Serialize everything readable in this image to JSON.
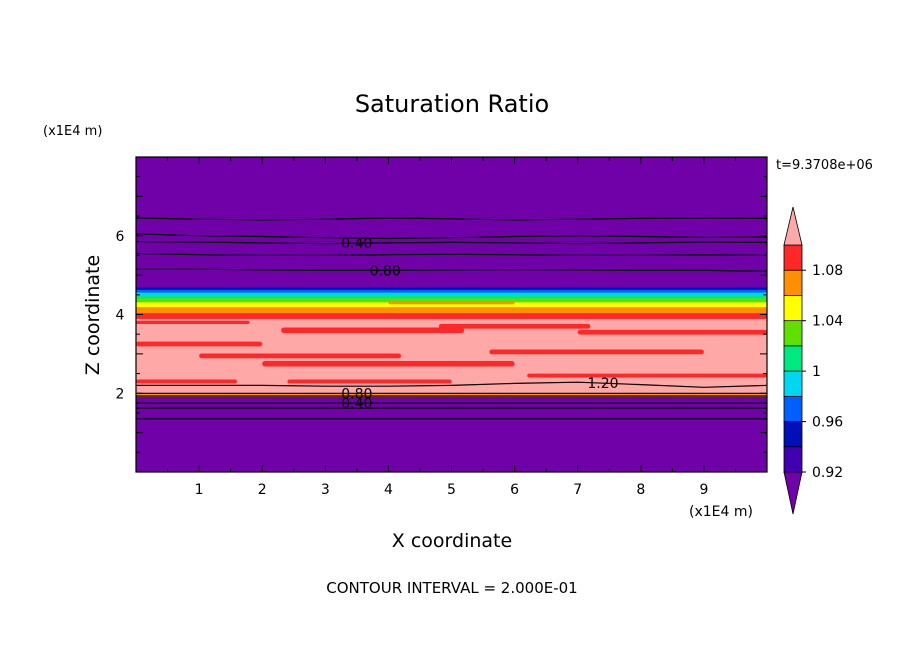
{
  "chart_data": {
    "type": "contour",
    "title": "Saturation Ratio",
    "xlabel": "X coordinate",
    "ylabel": "Z coordinate",
    "x_unit": "(x1E4 m)",
    "y_unit": "(x1E4 m)",
    "time_label": "t=9.3708e+06",
    "footer": "CONTOUR INTERVAL = 2.000E-01",
    "xlim": [
      0,
      10
    ],
    "ylim": [
      0,
      8
    ],
    "x_ticks": [
      1,
      2,
      3,
      4,
      5,
      6,
      7,
      8,
      9
    ],
    "y_ticks": [
      2,
      4,
      6
    ],
    "bands": [
      {
        "z0": 0.0,
        "z1": 1.92,
        "level": "low"
      },
      {
        "z0": 1.92,
        "z1": 2.0,
        "level": "1.04-1.06"
      },
      {
        "z0": 2.0,
        "z1": 3.9,
        "level": "high"
      },
      {
        "z0": 3.9,
        "z1": 4.05,
        "level": "1.06-1.08"
      },
      {
        "z0": 4.05,
        "z1": 4.2,
        "level": "1.04-1.06"
      },
      {
        "z0": 4.2,
        "z1": 4.32,
        "level": "1.02-1.04"
      },
      {
        "z0": 4.32,
        "z1": 4.42,
        "level": "1-1.02"
      },
      {
        "z0": 4.42,
        "z1": 4.5,
        "level": "0.98-1"
      },
      {
        "z0": 4.5,
        "z1": 4.57,
        "level": "0.96-0.98"
      },
      {
        "z0": 4.57,
        "z1": 4.64,
        "level": "0.94-0.96"
      },
      {
        "z0": 4.64,
        "z1": 4.7,
        "level": "0.92-0.94"
      },
      {
        "z0": 4.7,
        "z1": 8.0,
        "level": "low"
      }
    ],
    "streaks": [
      {
        "x0": 0.0,
        "x1": 2.0,
        "z": 3.25,
        "h": 0.12,
        "level": "1.06-1.08"
      },
      {
        "x0": 2.3,
        "x1": 5.2,
        "z": 3.6,
        "h": 0.14,
        "level": "1.06-1.08"
      },
      {
        "x0": 4.8,
        "x1": 7.2,
        "z": 3.7,
        "h": 0.12,
        "level": "1.06-1.08"
      },
      {
        "x0": 7.0,
        "x1": 10.0,
        "z": 3.55,
        "h": 0.12,
        "level": "1.06-1.08"
      },
      {
        "x0": 1.0,
        "x1": 4.2,
        "z": 2.95,
        "h": 0.12,
        "level": "1.06-1.08"
      },
      {
        "x0": 5.6,
        "x1": 9.0,
        "z": 3.05,
        "h": 0.12,
        "level": "1.06-1.08"
      },
      {
        "x0": 2.0,
        "x1": 6.0,
        "z": 2.75,
        "h": 0.14,
        "level": "1.06-1.08"
      },
      {
        "x0": 6.2,
        "x1": 10.0,
        "z": 2.45,
        "h": 0.1,
        "level": "1.06-1.08"
      },
      {
        "x0": 0.0,
        "x1": 1.6,
        "z": 2.3,
        "h": 0.1,
        "level": "1.06-1.08"
      },
      {
        "x0": 2.4,
        "x1": 5.0,
        "z": 2.3,
        "h": 0.1,
        "level": "1.06-1.08"
      },
      {
        "x0": 0.0,
        "x1": 1.8,
        "z": 3.8,
        "h": 0.08,
        "level": "1.06-1.08"
      },
      {
        "x0": 4.0,
        "x1": 6.0,
        "z": 4.3,
        "h": 0.08,
        "level": "1.04-1.06"
      }
    ],
    "contour_lines": [
      {
        "z": [
          6.45,
          6.42,
          6.4,
          6.42,
          6.45,
          6.43,
          6.4,
          6.42,
          6.44,
          6.45,
          6.44
        ]
      },
      {
        "z": [
          6.05,
          6.0,
          5.98,
          5.95,
          5.93,
          5.95,
          5.98,
          6.0,
          5.98,
          5.96,
          5.97
        ]
      },
      {
        "z": [
          5.85,
          5.84,
          5.82,
          5.8,
          5.82,
          5.83,
          5.82,
          5.8,
          5.82,
          5.84,
          5.83
        ],
        "label": "0.40",
        "label_x": 3.5
      },
      {
        "z": [
          5.55,
          5.52,
          5.5,
          5.5,
          5.52,
          5.53,
          5.52,
          5.5,
          5.5,
          5.52,
          5.5
        ]
      },
      {
        "z": [
          5.15,
          5.15,
          5.13,
          5.12,
          5.12,
          5.13,
          5.14,
          5.13,
          5.12,
          5.12,
          5.1
        ],
        "label": "0.80",
        "label_x": 3.95
      },
      {
        "z": [
          2.2,
          2.2,
          2.2,
          2.18,
          2.18,
          2.2,
          2.25,
          2.28,
          2.22,
          2.15,
          2.2
        ],
        "label": "1.20",
        "label_x": 7.4
      },
      {
        "z": [
          2.0,
          2.0,
          2.0,
          2.0,
          2.0,
          2.0,
          2.0,
          2.0,
          2.0,
          2.0,
          2.0
        ],
        "label": "0.80",
        "label_x": 3.5
      },
      {
        "z": [
          1.93,
          1.93,
          1.93,
          1.93,
          1.93,
          1.93,
          1.93,
          1.93,
          1.93,
          1.93,
          1.93
        ]
      },
      {
        "z": [
          1.75,
          1.75,
          1.75,
          1.75,
          1.75,
          1.75,
          1.75,
          1.75,
          1.75,
          1.75,
          1.75
        ],
        "label": "0.40",
        "label_x": 3.5
      },
      {
        "z": [
          1.62,
          1.62,
          1.62,
          1.62,
          1.62,
          1.62,
          1.62,
          1.62,
          1.62,
          1.62,
          1.62
        ]
      },
      {
        "z": [
          1.35,
          1.35,
          1.35,
          1.35,
          1.35,
          1.35,
          1.35,
          1.35,
          1.35,
          1.35,
          1.35
        ]
      }
    ],
    "colorbar": {
      "levels": [
        {
          "name": "low",
          "color": "#7000a8"
        },
        {
          "name": "0.90-0.92",
          "color": "#4000b0"
        },
        {
          "name": "0.92-0.94",
          "color": "#0010b8"
        },
        {
          "name": "0.94-0.96",
          "color": "#0060ff"
        },
        {
          "name": "0.96-0.98",
          "color": "#00d8f0"
        },
        {
          "name": "0.98-1",
          "color": "#00e880"
        },
        {
          "name": "1-1.02",
          "color": "#60e000"
        },
        {
          "name": "1.02-1.04",
          "color": "#ffff00"
        },
        {
          "name": "1.04-1.06",
          "color": "#ff9000"
        },
        {
          "name": "1.06-1.08",
          "color": "#ff2828"
        },
        {
          "name": "high",
          "color": "#ffa8a8"
        }
      ],
      "labels": [
        "0.92",
        "0.96",
        "1",
        "1.04",
        "1.08"
      ]
    }
  }
}
